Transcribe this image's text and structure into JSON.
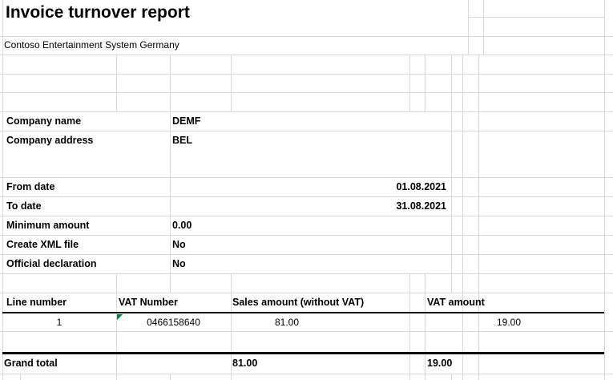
{
  "report": {
    "title": "Invoice turnover report",
    "company": "Contoso Entertainment System Germany",
    "parameters": [
      {
        "label": "Company name",
        "value": "DEMF"
      },
      {
        "label": "Company address",
        "value": "BEL"
      },
      {
        "label": "From date",
        "value": "01.08.2021"
      },
      {
        "label": "To date",
        "value": "31.08.2021"
      },
      {
        "label": "Minimum amount",
        "value": "0.00"
      },
      {
        "label": "Create XML file",
        "value": "No"
      },
      {
        "label": "Official declaration",
        "value": "No"
      }
    ],
    "table": {
      "columns": [
        "Line number",
        "VAT Number",
        "Sales amount (without VAT)",
        "VAT amount"
      ],
      "rows": [
        [
          "1",
          "0466158640",
          "81.00",
          "19.00"
        ]
      ],
      "grand_total": {
        "label": "Grand total",
        "sales_amount": "81.00",
        "vat_amount": "19.00"
      }
    },
    "colors": {
      "gridline": "#d9d9d9",
      "strong_border": "#000000",
      "text_flag_green": "#107c41",
      "background": "#ffffff"
    },
    "icons": {
      "vat_number_flag": "number-stored-as-text-flag"
    }
  }
}
